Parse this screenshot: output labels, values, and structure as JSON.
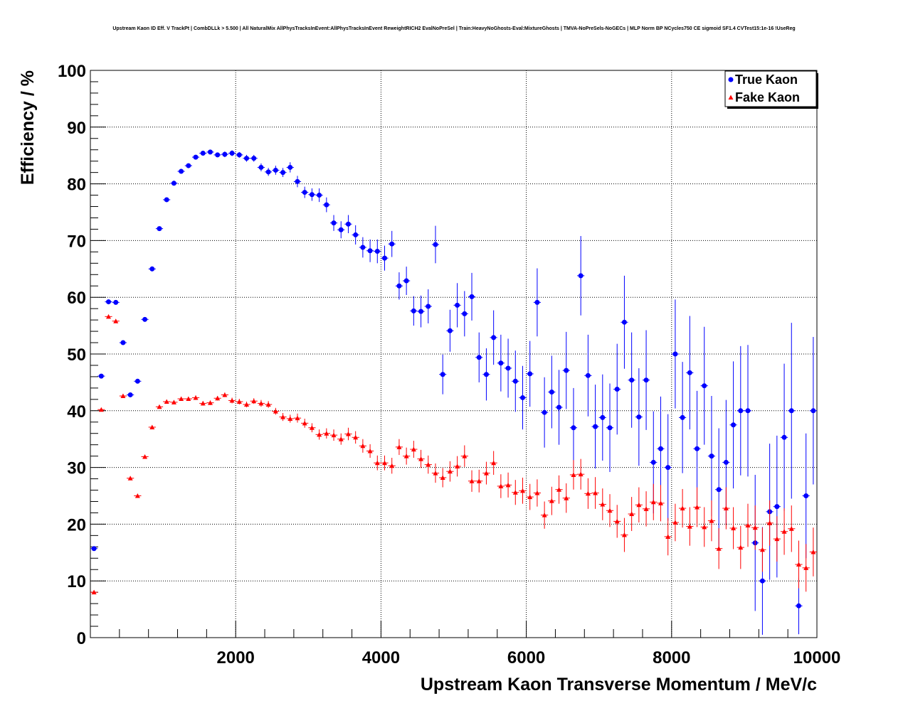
{
  "chart_data": {
    "type": "scatter",
    "title": "Upstream Kaon ID Eff. V TrackPt | CombDLLk > 5.500 | All NaturalMix AllPhysTracksInEvent:AllPhysTracksInEvent ReweightRICH2 EvalNoPreSel | Train:HeavyNoGhosts-Eval:MixtureGhosts | TMVA-NoPreSels-NoGECs | MLP Norm BP NCycles750 CE sigmoid SF1.4 CVTest15:1e-16 !UseReg",
    "xlabel": "Upstream Kaon Transverse Momentum / MeV/c",
    "ylabel": "Efficiency / %",
    "xlim": [
      0,
      10000
    ],
    "ylim": [
      0,
      100
    ],
    "x_ticks": [
      2000,
      4000,
      6000,
      8000,
      10000
    ],
    "x_tick_labels": [
      "2000",
      "4000",
      "6000",
      "8000",
      "10000"
    ],
    "y_ticks": [
      0,
      10,
      20,
      30,
      40,
      50,
      60,
      70,
      80,
      90,
      100
    ],
    "y_tick_labels": [
      "0",
      "10",
      "20",
      "30",
      "40",
      "50",
      "60",
      "70",
      "80",
      "90",
      "100"
    ],
    "grid": true,
    "legend": "top-right",
    "bin_width": 100,
    "x": [
      50,
      150,
      250,
      350,
      450,
      550,
      650,
      750,
      850,
      950,
      1050,
      1150,
      1250,
      1350,
      1450,
      1550,
      1650,
      1750,
      1850,
      1950,
      2050,
      2150,
      2250,
      2350,
      2450,
      2550,
      2650,
      2750,
      2850,
      2950,
      3050,
      3150,
      3250,
      3350,
      3450,
      3550,
      3650,
      3750,
      3850,
      3950,
      4050,
      4150,
      4250,
      4350,
      4450,
      4550,
      4650,
      4750,
      4850,
      4950,
      5050,
      5150,
      5250,
      5350,
      5450,
      5550,
      5650,
      5750,
      5850,
      5950,
      6050,
      6150,
      6250,
      6350,
      6450,
      6550,
      6650,
      6750,
      6850,
      6950,
      7050,
      7150,
      7250,
      7350,
      7450,
      7550,
      7650,
      7750,
      7850,
      7950,
      8050,
      8150,
      8250,
      8350,
      8450,
      8550,
      8650,
      8750,
      8850,
      8950,
      9050,
      9150,
      9250,
      9350,
      9450,
      9550,
      9650,
      9750,
      9850,
      9950
    ],
    "series": [
      {
        "name": "True Kaon",
        "color": "#0000ff",
        "marker": "circle",
        "y": [
          15.7,
          46.1,
          59.2,
          59.1,
          52.0,
          42.8,
          45.2,
          56.1,
          65.0,
          72.1,
          77.2,
          80.1,
          82.2,
          83.2,
          84.7,
          85.4,
          85.6,
          85.1,
          85.2,
          85.4,
          85.1,
          84.5,
          84.5,
          82.9,
          82.1,
          82.4,
          82.0,
          82.9,
          80.4,
          78.5,
          78.1,
          78.0,
          76.3,
          73.1,
          71.9,
          72.9,
          71.0,
          68.8,
          68.2,
          68.1,
          66.9,
          69.4,
          62.0,
          62.9,
          57.6,
          57.5,
          58.4,
          69.3,
          46.4,
          54.1,
          58.6,
          57.1,
          60.1,
          49.4,
          46.4,
          52.9,
          48.4,
          47.5,
          45.2,
          42.3,
          46.5,
          59.1,
          39.7,
          43.3,
          40.6,
          47.1,
          37.0,
          63.8,
          46.2,
          37.2,
          38.8,
          37.0,
          43.8,
          55.6,
          45.4,
          38.9,
          45.4,
          30.9,
          33.3,
          30.0,
          50.0,
          38.8,
          46.7,
          33.3,
          44.4,
          32.0,
          26.1,
          30.9,
          37.5,
          40.0,
          40.0,
          16.7,
          10.0,
          22.2,
          23.1,
          35.3,
          40.0,
          5.6,
          25.0,
          40.0
        ],
        "err": [
          0.4,
          0.3,
          0.3,
          0.3,
          0.3,
          0.3,
          0.3,
          0.3,
          0.3,
          0.3,
          0.3,
          0.3,
          0.4,
          0.4,
          0.4,
          0.4,
          0.4,
          0.4,
          0.5,
          0.5,
          0.5,
          0.6,
          0.6,
          0.7,
          0.7,
          0.8,
          0.8,
          0.9,
          1.0,
          1.0,
          1.1,
          1.2,
          1.3,
          1.4,
          1.5,
          1.6,
          1.7,
          1.8,
          2.0,
          2.1,
          2.2,
          2.3,
          2.4,
          2.5,
          2.6,
          2.8,
          3.0,
          3.3,
          3.5,
          3.7,
          3.9,
          4.0,
          4.2,
          4.4,
          4.6,
          4.8,
          5.0,
          5.2,
          5.4,
          5.6,
          5.8,
          6.0,
          6.2,
          6.4,
          6.6,
          6.8,
          7.0,
          7.0,
          7.2,
          7.4,
          7.6,
          7.8,
          8.0,
          8.2,
          8.4,
          8.6,
          8.8,
          9.0,
          9.2,
          9.4,
          9.6,
          9.8,
          10.0,
          10.2,
          10.4,
          10.6,
          10.8,
          11.0,
          11.2,
          11.4,
          11.6,
          12.0,
          9.5,
          12.0,
          12.5,
          13.0,
          15.5,
          5.0,
          11.0,
          13.0
        ]
      },
      {
        "name": "Fake Kaon",
        "color": "#ff0000",
        "marker": "triangle",
        "y": [
          8.0,
          40.2,
          56.6,
          55.8,
          42.6,
          28.1,
          25.0,
          31.9,
          37.1,
          40.7,
          41.6,
          41.5,
          42.1,
          42.1,
          42.3,
          41.3,
          41.4,
          42.2,
          42.8,
          41.8,
          41.6,
          41.1,
          41.7,
          41.3,
          41.1,
          39.9,
          38.9,
          38.6,
          38.7,
          37.8,
          37.0,
          35.8,
          36.0,
          35.7,
          35.0,
          35.9,
          35.3,
          33.8,
          32.9,
          30.8,
          30.8,
          30.3,
          33.6,
          32.0,
          33.2,
          31.5,
          30.5,
          29.0,
          28.2,
          29.3,
          30.2,
          32.0,
          27.6,
          27.6,
          29.0,
          30.8,
          26.7,
          26.9,
          25.6,
          25.9,
          24.8,
          25.5,
          21.6,
          24.1,
          26.1,
          24.6,
          28.7,
          28.8,
          25.4,
          25.5,
          23.5,
          22.4,
          20.5,
          18.1,
          21.8,
          23.4,
          22.7,
          23.9,
          23.7,
          17.8,
          20.3,
          22.8,
          19.6,
          23.0,
          19.5,
          20.6,
          15.7,
          22.8,
          19.3,
          15.9,
          19.8,
          19.4,
          15.5,
          20.2,
          17.4,
          18.7,
          19.2,
          12.9,
          12.3,
          15.1
        ],
        "err": [
          0.3,
          0.3,
          0.3,
          0.3,
          0.3,
          0.3,
          0.3,
          0.3,
          0.3,
          0.3,
          0.3,
          0.3,
          0.3,
          0.3,
          0.4,
          0.4,
          0.4,
          0.4,
          0.4,
          0.5,
          0.5,
          0.5,
          0.5,
          0.6,
          0.6,
          0.6,
          0.7,
          0.7,
          0.8,
          0.8,
          0.8,
          0.9,
          0.9,
          1.0,
          1.0,
          1.1,
          1.1,
          1.2,
          1.2,
          1.3,
          1.3,
          1.4,
          1.4,
          1.5,
          1.5,
          1.6,
          1.6,
          1.7,
          1.7,
          1.8,
          1.8,
          1.9,
          1.9,
          2.0,
          2.0,
          2.1,
          2.1,
          2.2,
          2.2,
          2.3,
          2.3,
          2.4,
          2.4,
          2.5,
          2.5,
          2.6,
          2.6,
          2.7,
          2.7,
          2.8,
          2.8,
          2.9,
          2.9,
          3.0,
          3.0,
          3.1,
          3.1,
          3.2,
          3.2,
          3.3,
          3.3,
          3.4,
          3.4,
          3.5,
          3.5,
          3.6,
          3.6,
          3.7,
          3.7,
          3.8,
          3.8,
          3.9,
          3.9,
          4.0,
          4.0,
          4.1,
          4.1,
          4.2,
          4.2,
          4.3
        ]
      }
    ]
  }
}
